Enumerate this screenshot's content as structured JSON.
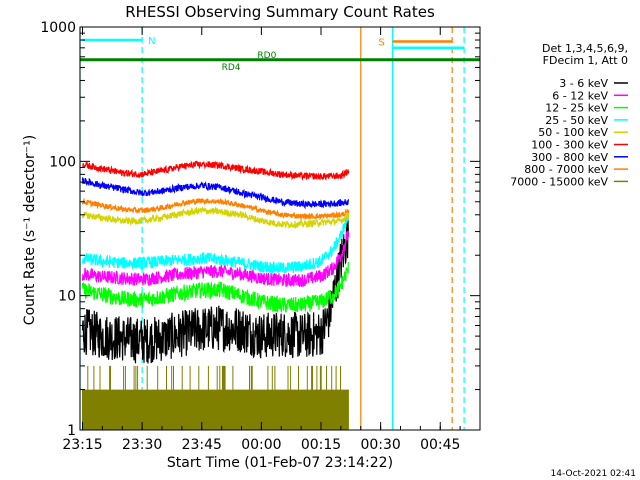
{
  "chart_data": {
    "type": "line",
    "title": "RHESSI Observing Summary Count Rates",
    "xlabel": "Start Time (01-Feb-07 23:14:22)",
    "ylabel": "Count Rate (s⁻¹ detector⁻¹)",
    "x_scale": "time_minutes",
    "y_scale": "log",
    "xlim": [
      "23:14:22",
      "00:55"
    ],
    "ylim": [
      1,
      1000
    ],
    "x_ticks": [
      "23:15",
      "23:30",
      "23:45",
      "00:00",
      "00:15",
      "00:30",
      "00:45"
    ],
    "y_ticks": [
      "1",
      "10",
      "100",
      "1000"
    ],
    "legend": {
      "placement": "right",
      "header": [
        "Det 1,3,4,5,6,9,",
        "FDecim 1, Att 0"
      ],
      "entries": [
        {
          "label": "3 - 6 keV",
          "color": "#000000"
        },
        {
          "label": "6 - 12 keV",
          "color": "#ff00ff"
        },
        {
          "label": "12 - 25 keV",
          "color": "#00ff00"
        },
        {
          "label": "25 - 50 keV",
          "color": "#00ffff"
        },
        {
          "label": "50 - 100 keV",
          "color": "#d4d400"
        },
        {
          "label": "100 - 300 keV",
          "color": "#ff0000"
        },
        {
          "label": "300 - 800 keV",
          "color": "#0000ff"
        },
        {
          "label": "800 - 7000 keV",
          "color": "#ff8000"
        },
        {
          "label": "7000 - 15000 keV",
          "color": "#808000"
        }
      ]
    },
    "series": [
      {
        "name": "3 - 6 keV",
        "color": "#000000",
        "noise": 0.35,
        "points": [
          [
            "23:15",
            5.5
          ],
          [
            "23:20",
            5.0
          ],
          [
            "23:25",
            4.8
          ],
          [
            "23:30",
            4.6
          ],
          [
            "23:35",
            4.8
          ],
          [
            "23:40",
            5.2
          ],
          [
            "23:45",
            5.6
          ],
          [
            "23:50",
            5.8
          ],
          [
            "23:55",
            5.6
          ],
          [
            "00:00",
            5.0
          ],
          [
            "00:05",
            5.2
          ],
          [
            "00:10",
            5.0
          ],
          [
            "00:15",
            5.2
          ],
          [
            "00:17",
            7.0
          ],
          [
            "00:20",
            18
          ],
          [
            "00:22",
            30
          ]
        ]
      },
      {
        "name": "6 - 12 keV",
        "color": "#ff00ff",
        "noise": 0.1,
        "points": [
          [
            "23:15",
            14.5
          ],
          [
            "23:20",
            13.8
          ],
          [
            "23:25",
            13.5
          ],
          [
            "23:30",
            13.2
          ],
          [
            "23:35",
            13.8
          ],
          [
            "23:40",
            14.5
          ],
          [
            "23:45",
            15.0
          ],
          [
            "23:50",
            15.2
          ],
          [
            "23:55",
            14.5
          ],
          [
            "00:00",
            13.5
          ],
          [
            "00:05",
            13.0
          ],
          [
            "00:10",
            13.0
          ],
          [
            "00:15",
            14.0
          ],
          [
            "00:18",
            16
          ],
          [
            "00:20",
            20
          ],
          [
            "00:22",
            30
          ]
        ]
      },
      {
        "name": "12 - 25 keV",
        "color": "#00ff00",
        "noise": 0.12,
        "points": [
          [
            "23:15",
            11
          ],
          [
            "23:20",
            10.2
          ],
          [
            "23:25",
            9.5
          ],
          [
            "23:30",
            9.3
          ],
          [
            "23:35",
            9.8
          ],
          [
            "23:40",
            10.5
          ],
          [
            "23:45",
            11
          ],
          [
            "23:50",
            11
          ],
          [
            "23:55",
            10
          ],
          [
            "00:00",
            9
          ],
          [
            "00:05",
            8.5
          ],
          [
            "00:10",
            8.5
          ],
          [
            "00:15",
            9
          ],
          [
            "00:18",
            10
          ],
          [
            "00:20",
            12
          ],
          [
            "00:22",
            16
          ]
        ]
      },
      {
        "name": "25 - 50 keV",
        "color": "#00ffff",
        "noise": 0.09,
        "points": [
          [
            "23:15",
            19
          ],
          [
            "23:20",
            18
          ],
          [
            "23:25",
            17.5
          ],
          [
            "23:30",
            17.5
          ],
          [
            "23:35",
            18
          ],
          [
            "23:40",
            18.5
          ],
          [
            "23:45",
            19
          ],
          [
            "23:50",
            18.5
          ],
          [
            "23:55",
            17.5
          ],
          [
            "00:00",
            16.5
          ],
          [
            "00:05",
            16
          ],
          [
            "00:10",
            16.5
          ],
          [
            "00:15",
            18
          ],
          [
            "00:18",
            22
          ],
          [
            "00:20",
            28
          ],
          [
            "00:22",
            40
          ]
        ]
      },
      {
        "name": "50 - 100 keV",
        "color": "#d4d400",
        "noise": 0.05,
        "points": [
          [
            "23:15",
            40
          ],
          [
            "23:20",
            38
          ],
          [
            "23:25",
            36
          ],
          [
            "23:30",
            36
          ],
          [
            "23:35",
            38
          ],
          [
            "23:40",
            41
          ],
          [
            "23:45",
            43
          ],
          [
            "23:50",
            42
          ],
          [
            "23:55",
            40
          ],
          [
            "00:00",
            36
          ],
          [
            "00:05",
            34
          ],
          [
            "00:10",
            34
          ],
          [
            "00:15",
            35
          ],
          [
            "00:20",
            36
          ],
          [
            "00:22",
            40
          ]
        ]
      },
      {
        "name": "100 - 300 keV",
        "color": "#ff0000",
        "noise": 0.05,
        "points": [
          [
            "23:15",
            95
          ],
          [
            "23:20",
            88
          ],
          [
            "23:25",
            82
          ],
          [
            "23:30",
            80
          ],
          [
            "23:35",
            85
          ],
          [
            "23:40",
            92
          ],
          [
            "23:45",
            95
          ],
          [
            "23:50",
            93
          ],
          [
            "23:55",
            88
          ],
          [
            "00:00",
            84
          ],
          [
            "00:05",
            80
          ],
          [
            "00:10",
            78
          ],
          [
            "00:15",
            77
          ],
          [
            "00:20",
            78
          ],
          [
            "00:22",
            85
          ]
        ]
      },
      {
        "name": "300 - 800 keV",
        "color": "#0000ff",
        "noise": 0.05,
        "points": [
          [
            "23:15",
            72
          ],
          [
            "23:20",
            66
          ],
          [
            "23:25",
            62
          ],
          [
            "23:30",
            58
          ],
          [
            "23:35",
            60
          ],
          [
            "23:40",
            64
          ],
          [
            "23:45",
            66
          ],
          [
            "23:50",
            64
          ],
          [
            "23:55",
            58
          ],
          [
            "00:00",
            54
          ],
          [
            "00:05",
            50
          ],
          [
            "00:10",
            48
          ],
          [
            "00:15",
            48
          ],
          [
            "00:20",
            49
          ],
          [
            "00:22",
            50
          ]
        ]
      },
      {
        "name": "800 - 7000 keV",
        "color": "#ff8000",
        "noise": 0.04,
        "points": [
          [
            "23:15",
            50
          ],
          [
            "23:20",
            47
          ],
          [
            "23:25",
            44
          ],
          [
            "23:30",
            43
          ],
          [
            "23:35",
            45
          ],
          [
            "23:40",
            49
          ],
          [
            "23:45",
            51
          ],
          [
            "23:50",
            50
          ],
          [
            "23:55",
            47
          ],
          [
            "00:00",
            43
          ],
          [
            "00:05",
            40
          ],
          [
            "00:10",
            39
          ],
          [
            "00:15",
            39
          ],
          [
            "00:20",
            40
          ],
          [
            "00:22",
            42
          ]
        ]
      },
      {
        "name": "7000 - 15000 keV",
        "color": "#808000",
        "style": "dense",
        "ymin": 1,
        "ymax": 2,
        "points": [
          [
            "23:15",
            2
          ],
          [
            "00:22",
            2
          ]
        ]
      }
    ],
    "annotations": {
      "flags": [
        {
          "label": "N",
          "color": "#00ffff",
          "start": "23:15",
          "end": "23:30",
          "value": 800
        },
        {
          "label": "S",
          "color": "#ff8000",
          "start": "00:33",
          "end": "00:48",
          "value": 780
        },
        {
          "label": "",
          "color": "#00ffff",
          "start": "00:33",
          "end": "00:51",
          "value": 700
        }
      ],
      "green_bar": {
        "start": "23:14:22",
        "end": "00:55",
        "value": 570
      },
      "text_labels": [
        {
          "text": "RD0",
          "color": "#008000",
          "at": "23:59",
          "value": 590
        },
        {
          "text": "RD4",
          "color": "#008000",
          "at": "23:50",
          "value": 480
        }
      ],
      "vlines": [
        {
          "at": "23:14:22",
          "color": "#00ffff",
          "style": "solid"
        },
        {
          "at": "23:30",
          "color": "#00ffff",
          "style": "dashed"
        },
        {
          "at": "00:25",
          "color": "#ff8000",
          "style": "solid"
        },
        {
          "at": "00:33",
          "color": "#00ffff",
          "style": "solid"
        },
        {
          "at": "00:48",
          "color": "#ff8000",
          "style": "dashed"
        },
        {
          "at": "00:51",
          "color": "#00ffff",
          "style": "dashed"
        }
      ]
    },
    "footer_timestamp": "14-Oct-2021 02:41"
  }
}
